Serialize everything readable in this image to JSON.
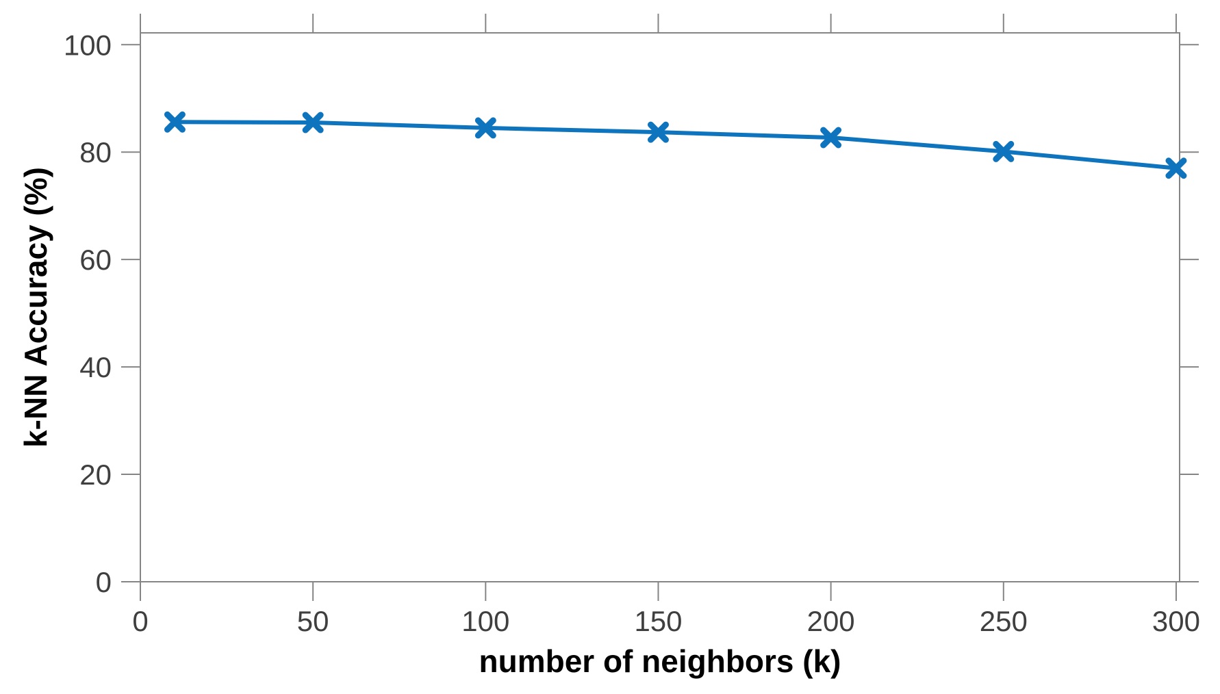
{
  "chart_data": {
    "type": "line",
    "title": "",
    "xlabel": "number of neighbors (k)",
    "ylabel": "k-NN Accuracy (%)",
    "x": [
      10,
      50,
      100,
      150,
      200,
      250,
      300
    ],
    "series": [
      {
        "name": "k-NN accuracy",
        "values": [
          85.6,
          85.5,
          84.5,
          83.7,
          82.7,
          80.1,
          77.0
        ]
      }
    ],
    "xticks": [
      0,
      50,
      100,
      150,
      200,
      250,
      300
    ],
    "yticks": [
      0,
      20,
      40,
      60,
      80,
      100
    ],
    "xlim": [
      0,
      301
    ],
    "ylim": [
      0,
      102.2
    ],
    "grid": false,
    "legend": "none",
    "marker": "x",
    "line_color": "#0e74bd",
    "axis_color": "#858585",
    "tick_label_color": "#3f3f3f",
    "label_color": "#000000"
  }
}
